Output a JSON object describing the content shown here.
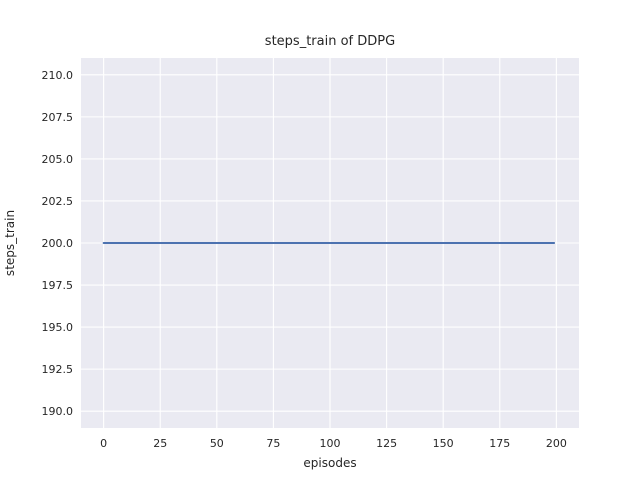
{
  "figure": {
    "background": "#ffffff"
  },
  "chart_data": {
    "type": "line",
    "title": "steps_train of DDPG",
    "xlabel": "episodes",
    "ylabel": "steps_train",
    "x_ticks": [
      0,
      25,
      50,
      75,
      100,
      125,
      150,
      175,
      200
    ],
    "x_tick_labels": [
      "0",
      "25",
      "50",
      "75",
      "100",
      "125",
      "150",
      "175",
      "200"
    ],
    "y_ticks": [
      190.0,
      192.5,
      195.0,
      197.5,
      200.0,
      202.5,
      205.0,
      207.5,
      210.0
    ],
    "y_tick_labels": [
      "190.0",
      "192.5",
      "195.0",
      "197.5",
      "200.0",
      "202.5",
      "205.0",
      "207.5",
      "210.0"
    ],
    "xlim": [
      -10,
      210
    ],
    "ylim": [
      189,
      211
    ],
    "grid": true,
    "legend_position": "none",
    "plot_background": "#eaeaf2",
    "grid_color": "#ffffff",
    "text_color": "#262626",
    "series": [
      {
        "name": "DDPG steps_train",
        "color": "#4c72b0",
        "x": [
          0,
          199
        ],
        "y": [
          200,
          200
        ]
      }
    ]
  }
}
